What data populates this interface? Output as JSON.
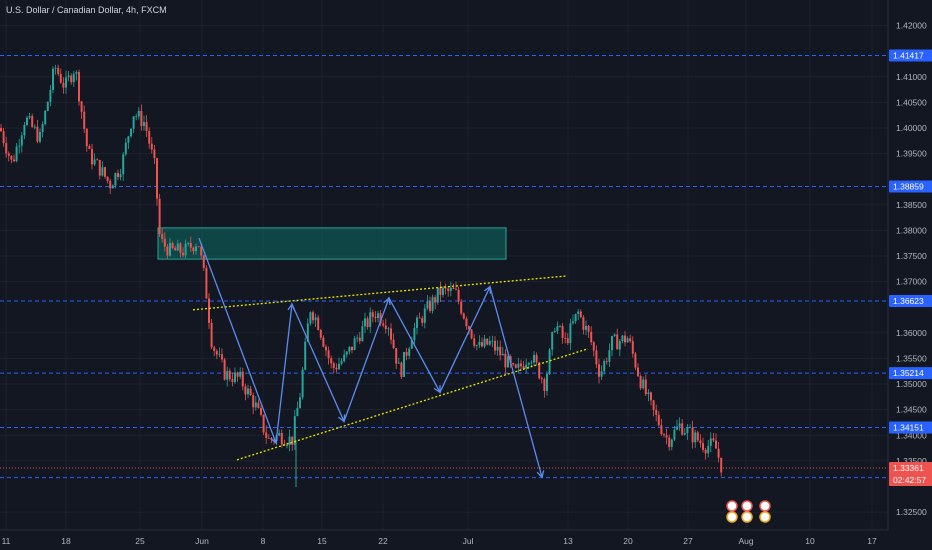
{
  "title": "U.S. Dollar / Canadian Dollar, 4h, FXCM",
  "colors": {
    "background": "#131722",
    "up": "#26a69a",
    "down": "#ef5350",
    "level_line": "#2962ff",
    "level_label": "#2962ff",
    "current_price": "#ef5350",
    "trendline": "#e6e600",
    "arrows": "#5b8def",
    "zone_fill": "#0e6b62",
    "zone_border": "#26a69a"
  },
  "chart_data": {
    "type": "candlestick",
    "title": "U.S. Dollar / Canadian Dollar, 4h, FXCM",
    "ylim": [
      1.3215,
      1.425
    ],
    "y_ticks": [
      "1.42000",
      "1.41000",
      "1.40500",
      "1.40000",
      "1.39500",
      "1.38500",
      "1.38000",
      "1.37500",
      "1.37000",
      "1.36000",
      "1.35500",
      "1.35000",
      "1.34500",
      "1.34000",
      "1.33500",
      "1.32500"
    ],
    "x_ticks": [
      "11",
      "18",
      "25",
      "Jun",
      "8",
      "15",
      "22",
      "Jul",
      "13",
      "20",
      "27",
      "Aug",
      "10",
      "17"
    ],
    "price_path": [
      [
        0,
        1.4
      ],
      [
        12,
        1.393
      ],
      [
        25,
        1.402
      ],
      [
        40,
        1.398
      ],
      [
        55,
        1.412
      ],
      [
        65,
        1.408
      ],
      [
        75,
        1.412
      ],
      [
        88,
        1.395
      ],
      [
        100,
        1.392
      ],
      [
        110,
        1.389
      ],
      [
        122,
        1.393
      ],
      [
        133,
        1.403
      ],
      [
        145,
        1.401
      ],
      [
        155,
        1.392
      ],
      [
        160,
        1.378
      ],
      [
        170,
        1.376
      ],
      [
        185,
        1.376
      ],
      [
        198,
        1.378
      ],
      [
        205,
        1.37
      ],
      [
        212,
        1.358
      ],
      [
        225,
        1.352
      ],
      [
        240,
        1.351
      ],
      [
        255,
        1.346
      ],
      [
        268,
        1.339
      ],
      [
        280,
        1.34
      ],
      [
        292,
        1.339
      ],
      [
        300,
        1.348
      ],
      [
        310,
        1.365
      ],
      [
        318,
        1.362
      ],
      [
        332,
        1.353
      ],
      [
        345,
        1.355
      ],
      [
        360,
        1.36
      ],
      [
        375,
        1.364
      ],
      [
        388,
        1.362
      ],
      [
        400,
        1.352
      ],
      [
        412,
        1.36
      ],
      [
        425,
        1.364
      ],
      [
        440,
        1.368
      ],
      [
        455,
        1.368
      ],
      [
        465,
        1.363
      ],
      [
        478,
        1.357
      ],
      [
        490,
        1.358
      ],
      [
        500,
        1.356
      ],
      [
        515,
        1.352
      ],
      [
        530,
        1.356
      ],
      [
        545,
        1.35
      ],
      [
        555,
        1.362
      ],
      [
        565,
        1.358
      ],
      [
        578,
        1.364
      ],
      [
        590,
        1.359
      ],
      [
        600,
        1.352
      ],
      [
        612,
        1.358
      ],
      [
        628,
        1.359
      ],
      [
        640,
        1.351
      ],
      [
        652,
        1.345
      ],
      [
        668,
        1.339
      ],
      [
        680,
        1.342
      ],
      [
        692,
        1.34
      ],
      [
        705,
        1.338
      ],
      [
        715,
        1.338
      ],
      [
        722,
        1.3336
      ]
    ],
    "levels": [
      {
        "value": 1.41417,
        "label": "1.41417"
      },
      {
        "value": 1.38859,
        "label": "1.38859"
      },
      {
        "value": 1.36623,
        "label": "1.36623"
      },
      {
        "value": 1.35214,
        "label": "1.35214"
      },
      {
        "value": 1.34151,
        "label": "1.34151"
      },
      {
        "value": 1.33174,
        "label": "1.33174"
      }
    ],
    "current_price": {
      "value": 1.33361,
      "label": "1.33361",
      "countdown": "02:42:57"
    },
    "zone": {
      "x0": 158,
      "x1": 506,
      "y0": 1.3744,
      "y1": 1.3805
    },
    "trendlines": [
      {
        "x0": 193,
        "y0": 1.3645,
        "x1": 566,
        "y1": 1.3711
      },
      {
        "x0": 237,
        "y0": 1.3352,
        "x1": 588,
        "y1": 1.3569
      }
    ],
    "pattern_path": [
      [
        199,
        1.3785
      ],
      [
        276,
        1.3385
      ],
      [
        292,
        1.3656
      ],
      [
        344,
        1.3427
      ],
      [
        389,
        1.3668
      ],
      [
        440,
        1.3484
      ],
      [
        490,
        1.369
      ],
      [
        542,
        1.3318
      ]
    ],
    "event_markers": [
      {
        "x": 732,
        "label": "3"
      },
      {
        "x": 747,
        "label": "3"
      },
      {
        "x": 765,
        "label": "2"
      }
    ]
  }
}
